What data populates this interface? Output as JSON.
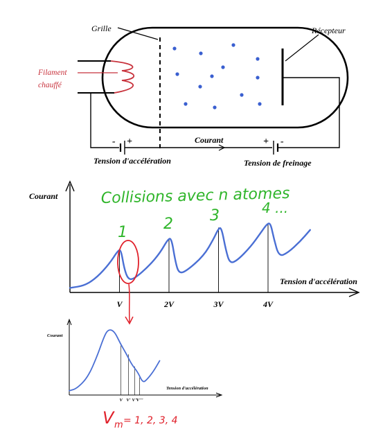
{
  "colors": {
    "ink": "#000000",
    "filament": "#c8323c",
    "atoms": "#3a5fd0",
    "curve": "#4a6fd4",
    "green_note": "#2fb52a",
    "red_note": "#e0202a"
  },
  "tube": {
    "grid_label": "Grille",
    "receiver_label": "Récepteur",
    "filament_label_line1": "Filament",
    "filament_label_line2": "chauffé",
    "current_label": "Courant",
    "accel_voltage_label": "Tension d'accélération",
    "braking_voltage_label": "Tension de freinage",
    "sign_minus": "-",
    "sign_plus": "+",
    "atom_count": 12
  },
  "annotations": {
    "collisions_note": "Collisions avec n atomes",
    "peak_1": "1",
    "peak_2": "2",
    "peak_3": "3",
    "peak_4": "4 ...",
    "formula_v": "V",
    "formula_sub": "m",
    "formula_rest": "= 1, 2, 3, 4"
  },
  "chart_data": [
    {
      "type": "line",
      "ylabel": "Courant",
      "xlabel": "Tension d'accélération",
      "x_ticks": [
        "V",
        "2V",
        "3V",
        "4V"
      ],
      "series": [
        {
          "points": [
            [
              0.0,
              0.06
            ],
            [
              0.3,
              0.09
            ],
            [
              0.55,
              0.2
            ],
            [
              0.8,
              0.38
            ],
            [
              0.97,
              0.55
            ],
            [
              1.03,
              0.56
            ],
            [
              1.1,
              0.3
            ],
            [
              1.18,
              0.17
            ],
            [
              1.3,
              0.18
            ],
            [
              1.6,
              0.35
            ],
            [
              1.82,
              0.52
            ],
            [
              1.98,
              0.7
            ],
            [
              2.05,
              0.71
            ],
            [
              2.13,
              0.4
            ],
            [
              2.2,
              0.25
            ],
            [
              2.35,
              0.28
            ],
            [
              2.7,
              0.48
            ],
            [
              2.9,
              0.7
            ],
            [
              3.0,
              0.84
            ],
            [
              3.06,
              0.85
            ],
            [
              3.15,
              0.55
            ],
            [
              3.23,
              0.38
            ],
            [
              3.38,
              0.42
            ],
            [
              3.65,
              0.6
            ],
            [
              3.85,
              0.78
            ],
            [
              3.98,
              0.9
            ],
            [
              4.05,
              0.91
            ],
            [
              4.12,
              0.7
            ],
            [
              4.22,
              0.47
            ],
            [
              4.4,
              0.52
            ],
            [
              4.65,
              0.67
            ],
            [
              4.85,
              0.82
            ]
          ]
        }
      ]
    },
    {
      "type": "line",
      "ylabel": "Courant",
      "xlabel": "Tension d'accélération",
      "x_ticks": [
        "V",
        "V'",
        "V\"",
        "V'''"
      ],
      "series": [
        {
          "points": [
            [
              0.0,
              0.06
            ],
            [
              0.12,
              0.09
            ],
            [
              0.3,
              0.25
            ],
            [
              0.45,
              0.55
            ],
            [
              0.55,
              0.8
            ],
            [
              0.62,
              0.92
            ],
            [
              0.72,
              0.9
            ],
            [
              0.82,
              0.72
            ],
            [
              0.92,
              0.57
            ],
            [
              1.0,
              0.43
            ],
            [
              1.1,
              0.32
            ],
            [
              1.18,
              0.17
            ],
            [
              1.25,
              0.22
            ],
            [
              1.35,
              0.33
            ],
            [
              1.45,
              0.48
            ]
          ]
        }
      ]
    }
  ]
}
